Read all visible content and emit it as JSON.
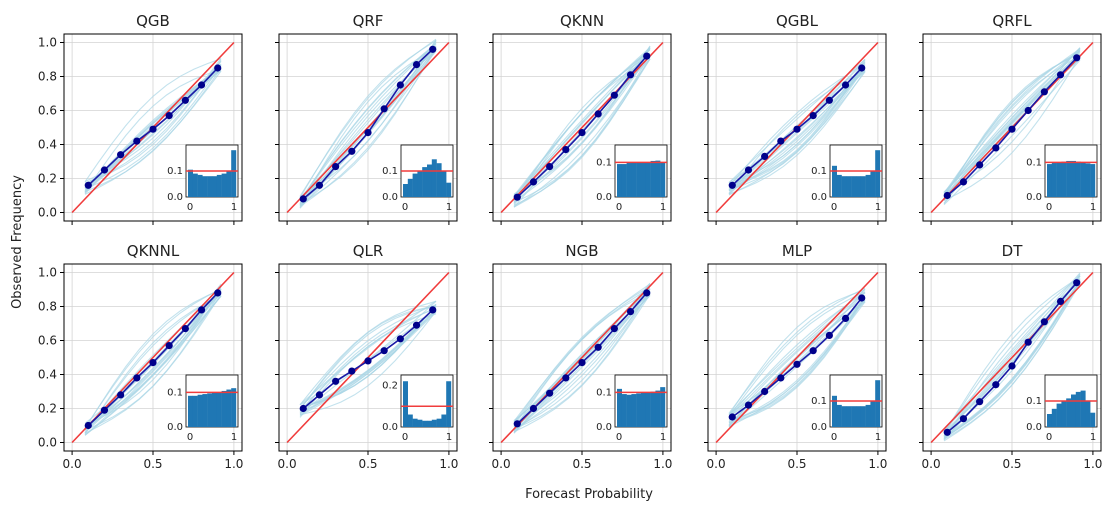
{
  "figure": {
    "ylabel": "Observed Frequency",
    "xlabel": "Forecast Probability"
  },
  "colors": {
    "diagonal": "#f03c3c",
    "curve": "#1a1aa6",
    "marker": "#00008b",
    "bands": "#a9d6e5",
    "hist_bar": "#1f77b4",
    "hist_line": "#f03c3c",
    "grid": "#d3d3d3"
  },
  "ticks": {
    "main_x": [
      "0.0",
      "0.5",
      "1.0"
    ],
    "main_y": [
      "0.0",
      "0.2",
      "0.4",
      "0.6",
      "0.8",
      "1.0"
    ],
    "inset_x": [
      "0",
      "1"
    ]
  },
  "chart_data": [
    {
      "type": "line",
      "title": "QGB",
      "x": [
        0.1,
        0.2,
        0.3,
        0.4,
        0.5,
        0.6,
        0.7,
        0.8,
        0.9
      ],
      "y": [
        0.16,
        0.25,
        0.34,
        0.42,
        0.49,
        0.57,
        0.66,
        0.75,
        0.85
      ],
      "xlim": [
        0,
        1
      ],
      "ylim": [
        0,
        1
      ],
      "inset": {
        "type": "bar",
        "ylim": [
          0,
          0.2
        ],
        "yticks": [
          "0.0",
          "0.1"
        ],
        "xticks": [
          "0",
          "1"
        ],
        "reference": 0.1,
        "values": [
          0.105,
          0.09,
          0.085,
          0.08,
          0.08,
          0.08,
          0.085,
          0.09,
          0.1,
          0.18
        ]
      }
    },
    {
      "type": "line",
      "title": "QRF",
      "x": [
        0.1,
        0.2,
        0.3,
        0.4,
        0.5,
        0.6,
        0.7,
        0.8,
        0.9
      ],
      "y": [
        0.08,
        0.16,
        0.27,
        0.36,
        0.47,
        0.61,
        0.75,
        0.87,
        0.96
      ],
      "xlim": [
        0,
        1
      ],
      "ylim": [
        0,
        1
      ],
      "inset": {
        "type": "bar",
        "ylim": [
          0,
          0.2
        ],
        "yticks": [
          "0.0",
          "0.1"
        ],
        "xticks": [
          "0",
          "1"
        ],
        "reference": 0.1,
        "values": [
          0.05,
          0.07,
          0.09,
          0.1,
          0.115,
          0.125,
          0.145,
          0.13,
          0.1,
          0.055
        ]
      }
    },
    {
      "type": "line",
      "title": "QKNN",
      "x": [
        0.1,
        0.2,
        0.3,
        0.4,
        0.5,
        0.6,
        0.7,
        0.8,
        0.9
      ],
      "y": [
        0.09,
        0.18,
        0.27,
        0.37,
        0.47,
        0.58,
        0.69,
        0.81,
        0.92
      ],
      "xlim": [
        0,
        1
      ],
      "ylim": [
        0,
        1
      ],
      "inset": {
        "type": "bar",
        "ylim": [
          0,
          0.15
        ],
        "yticks": [
          "0.0",
          "0.1"
        ],
        "xticks": [
          "0",
          "1"
        ],
        "reference": 0.1,
        "values": [
          0.095,
          0.095,
          0.098,
          0.1,
          0.1,
          0.1,
          0.1,
          0.104,
          0.105,
          0.1
        ]
      }
    },
    {
      "type": "line",
      "title": "QGBL",
      "x": [
        0.1,
        0.2,
        0.3,
        0.4,
        0.5,
        0.6,
        0.7,
        0.8,
        0.9
      ],
      "y": [
        0.16,
        0.25,
        0.33,
        0.42,
        0.49,
        0.57,
        0.66,
        0.75,
        0.85
      ],
      "xlim": [
        0,
        1
      ],
      "ylim": [
        0,
        1
      ],
      "inset": {
        "type": "bar",
        "ylim": [
          0,
          0.2
        ],
        "yticks": [
          "0.0",
          "0.1"
        ],
        "xticks": [
          "0",
          "1"
        ],
        "reference": 0.1,
        "values": [
          0.12,
          0.085,
          0.08,
          0.08,
          0.08,
          0.08,
          0.08,
          0.085,
          0.1,
          0.18
        ]
      }
    },
    {
      "type": "line",
      "title": "QRFL",
      "x": [
        0.1,
        0.2,
        0.3,
        0.4,
        0.5,
        0.6,
        0.7,
        0.8,
        0.9
      ],
      "y": [
        0.1,
        0.18,
        0.28,
        0.38,
        0.49,
        0.6,
        0.71,
        0.81,
        0.91
      ],
      "xlim": [
        0,
        1
      ],
      "ylim": [
        0,
        1
      ],
      "inset": {
        "type": "bar",
        "ylim": [
          0,
          0.15
        ],
        "yticks": [
          "0.0",
          "0.1"
        ],
        "xticks": [
          "0",
          "1"
        ],
        "reference": 0.1,
        "values": [
          0.095,
          0.098,
          0.1,
          0.102,
          0.104,
          0.104,
          0.102,
          0.1,
          0.097,
          0.095
        ]
      }
    },
    {
      "type": "line",
      "title": "QKNNL",
      "x": [
        0.1,
        0.2,
        0.3,
        0.4,
        0.5,
        0.6,
        0.7,
        0.8,
        0.9
      ],
      "y": [
        0.1,
        0.19,
        0.28,
        0.38,
        0.47,
        0.57,
        0.67,
        0.78,
        0.88
      ],
      "xlim": [
        0,
        1
      ],
      "ylim": [
        0,
        1
      ],
      "inset": {
        "type": "bar",
        "ylim": [
          0,
          0.15
        ],
        "yticks": [
          "0.0",
          "0.1"
        ],
        "xticks": [
          "0",
          "1"
        ],
        "reference": 0.1,
        "values": [
          0.09,
          0.09,
          0.093,
          0.095,
          0.097,
          0.1,
          0.1,
          0.104,
          0.108,
          0.112
        ]
      }
    },
    {
      "type": "line",
      "title": "QLR",
      "x": [
        0.1,
        0.2,
        0.3,
        0.4,
        0.5,
        0.6,
        0.7,
        0.8,
        0.9
      ],
      "y": [
        0.2,
        0.28,
        0.36,
        0.42,
        0.48,
        0.54,
        0.61,
        0.69,
        0.78
      ],
      "xlim": [
        0,
        1
      ],
      "ylim": [
        0,
        1
      ],
      "inset": {
        "type": "bar",
        "ylim": [
          0,
          0.25
        ],
        "yticks": [
          "0.0",
          "0.2"
        ],
        "xticks": [
          "0",
          "1"
        ],
        "reference": 0.1,
        "values": [
          0.22,
          0.06,
          0.04,
          0.035,
          0.03,
          0.03,
          0.035,
          0.04,
          0.06,
          0.22
        ]
      }
    },
    {
      "type": "line",
      "title": "NGB",
      "x": [
        0.1,
        0.2,
        0.3,
        0.4,
        0.5,
        0.6,
        0.7,
        0.8,
        0.9
      ],
      "y": [
        0.11,
        0.2,
        0.29,
        0.38,
        0.47,
        0.56,
        0.67,
        0.77,
        0.88
      ],
      "xlim": [
        0,
        1
      ],
      "ylim": [
        0,
        1
      ],
      "inset": {
        "type": "bar",
        "ylim": [
          0,
          0.15
        ],
        "yticks": [
          "0.0",
          "0.1"
        ],
        "xticks": [
          "0",
          "1"
        ],
        "reference": 0.1,
        "values": [
          0.11,
          0.095,
          0.093,
          0.095,
          0.097,
          0.1,
          0.1,
          0.102,
          0.105,
          0.115
        ]
      }
    },
    {
      "type": "line",
      "title": "MLP",
      "x": [
        0.1,
        0.2,
        0.3,
        0.4,
        0.5,
        0.6,
        0.7,
        0.8,
        0.9
      ],
      "y": [
        0.15,
        0.22,
        0.3,
        0.38,
        0.46,
        0.54,
        0.63,
        0.73,
        0.85
      ],
      "xlim": [
        0,
        1
      ],
      "ylim": [
        0,
        1
      ],
      "inset": {
        "type": "bar",
        "ylim": [
          0,
          0.2
        ],
        "yticks": [
          "0.0",
          "0.1"
        ],
        "xticks": [
          "0",
          "1"
        ],
        "reference": 0.1,
        "values": [
          0.12,
          0.085,
          0.08,
          0.08,
          0.08,
          0.08,
          0.08,
          0.085,
          0.1,
          0.18
        ]
      }
    },
    {
      "type": "line",
      "title": "DT",
      "x": [
        0.1,
        0.2,
        0.3,
        0.4,
        0.5,
        0.6,
        0.7,
        0.8,
        0.9
      ],
      "y": [
        0.06,
        0.14,
        0.24,
        0.34,
        0.45,
        0.59,
        0.71,
        0.83,
        0.94
      ],
      "xlim": [
        0,
        1
      ],
      "ylim": [
        0,
        1
      ],
      "inset": {
        "type": "bar",
        "ylim": [
          0,
          0.2
        ],
        "yticks": [
          "0.0",
          "0.1"
        ],
        "xticks": [
          "0",
          "1"
        ],
        "reference": 0.1,
        "values": [
          0.05,
          0.07,
          0.09,
          0.1,
          0.11,
          0.125,
          0.135,
          0.14,
          0.1,
          0.055
        ]
      }
    }
  ]
}
